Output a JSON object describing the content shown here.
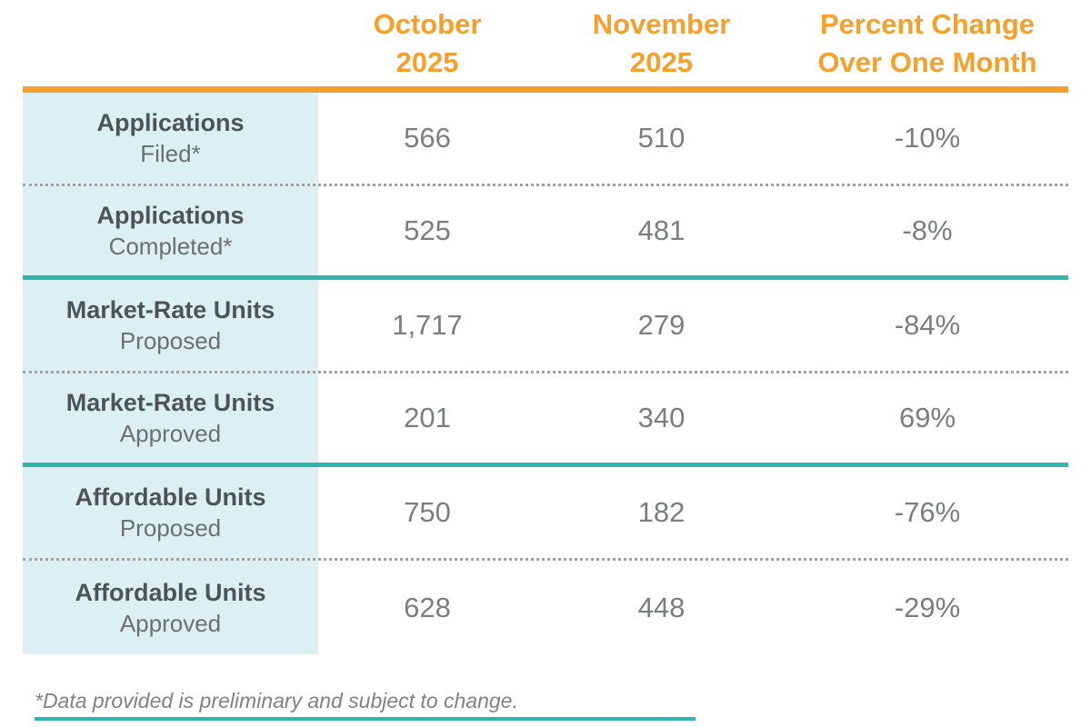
{
  "colors": {
    "accent_orange": "#F5A02B",
    "accent_teal": "#2FB4AE",
    "label_column_bg": "#DCF0F3",
    "label_bold_text": "#4D5456",
    "body_text_gray": "#7A7E81",
    "dotted_divider": "#9EA2A4"
  },
  "table": {
    "columns": [
      {
        "line1": "October",
        "line2": "2025"
      },
      {
        "line1": "November",
        "line2": "2025"
      },
      {
        "line1": "Percent Change",
        "line2": "Over One Month"
      }
    ],
    "rows": [
      {
        "label_line1": "Applications",
        "label_line2": "Filed*",
        "october": "566",
        "november": "510",
        "percent_change": "-10%"
      },
      {
        "label_line1": "Applications",
        "label_line2": "Completed*",
        "october": "525",
        "november": "481",
        "percent_change": "-8%"
      },
      {
        "label_line1": "Market-Rate Units",
        "label_line2": "Proposed",
        "october": "1,717",
        "november": "279",
        "percent_change": "-84%"
      },
      {
        "label_line1": "Market-Rate Units",
        "label_line2": "Approved",
        "october": "201",
        "november": "340",
        "percent_change": "69%"
      },
      {
        "label_line1": "Affordable Units",
        "label_line2": "Proposed",
        "october": "750",
        "november": "182",
        "percent_change": "-76%"
      },
      {
        "label_line1": "Affordable Units",
        "label_line2": "Approved",
        "october": "628",
        "november": "448",
        "percent_change": "-29%"
      }
    ]
  },
  "footnote": "*Data provided is preliminary and subject to change.",
  "chart_data": {
    "type": "table",
    "columns": [
      "",
      "October 2025",
      "November 2025",
      "Percent Change Over One Month"
    ],
    "rows": [
      [
        "Applications Filed*",
        566,
        510,
        "-10%"
      ],
      [
        "Applications Completed*",
        525,
        481,
        "-8%"
      ],
      [
        "Market-Rate Units Proposed",
        1717,
        279,
        "-84%"
      ],
      [
        "Market-Rate Units Approved",
        201,
        340,
        "69%"
      ],
      [
        "Affordable Units Proposed",
        750,
        182,
        "-76%"
      ],
      [
        "Affordable Units Approved",
        628,
        448,
        "-29%"
      ]
    ],
    "footnote": "*Data provided is preliminary and subject to change."
  }
}
